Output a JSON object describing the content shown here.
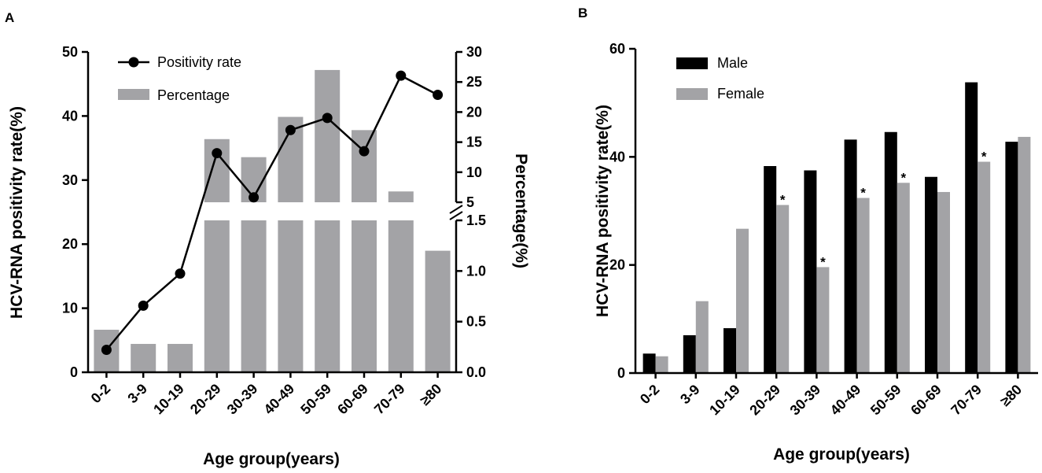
{
  "chart_data": [
    {
      "panel": "A",
      "type": "bar+line",
      "xlabel": "Age group(years)",
      "ylabel_left": "HCV-RNA positivity rate(%)",
      "ylabel_right": "Percentage(%)",
      "categories": [
        "0-2",
        "3-9",
        "10-19",
        "20-29",
        "30-39",
        "40-49",
        "50-59",
        "60-69",
        "70-79",
        "≥80"
      ],
      "left_axis": {
        "range": [
          0,
          50
        ],
        "ticks": [
          "0",
          "10",
          "20",
          "30",
          "40",
          "50"
        ]
      },
      "right_axis": {
        "broken": true,
        "lower_segment": {
          "range": [
            0,
            1.5
          ],
          "ticks": [
            "0.0",
            "0.5",
            "1.0",
            "1.5"
          ]
        },
        "upper_segment": {
          "range": [
            5,
            30
          ],
          "ticks": [
            "5",
            "10",
            "15",
            "20",
            "25",
            "30"
          ]
        }
      },
      "series": [
        {
          "name": "Positivity rate",
          "kind": "line",
          "axis": "left",
          "values": [
            3.5,
            10.4,
            15.4,
            34.2,
            27.3,
            37.8,
            39.7,
            34.5,
            46.3,
            43.3
          ]
        },
        {
          "name": "Percentage",
          "kind": "bar",
          "axis": "right",
          "values": [
            0.42,
            0.28,
            0.28,
            15.5,
            12.5,
            19.2,
            27.0,
            17.0,
            6.8,
            1.2
          ]
        }
      ],
      "legend": [
        "Positivity rate",
        "Percentage"
      ],
      "colors": {
        "line": "#000000",
        "bar": "#a3a3a6"
      }
    },
    {
      "panel": "B",
      "type": "grouped-bar",
      "xlabel": "Age group(years)",
      "ylabel": "HCV-RNA positivity rate(%)",
      "categories": [
        "0-2",
        "3-9",
        "10-19",
        "20-29",
        "30-39",
        "40-49",
        "50-59",
        "60-69",
        "70-79",
        "≥80"
      ],
      "ylim": [
        0,
        60
      ],
      "yticks": [
        "0",
        "20",
        "40",
        "60"
      ],
      "series": [
        {
          "name": "Male",
          "color": "#000000",
          "values": [
            3.6,
            7.0,
            8.3,
            38.3,
            37.5,
            43.2,
            44.6,
            36.3,
            53.8,
            42.8
          ]
        },
        {
          "name": "Female",
          "color": "#a3a3a6",
          "values": [
            3.1,
            13.3,
            26.7,
            31.1,
            19.6,
            32.4,
            35.2,
            33.5,
            39.1,
            43.7
          ]
        }
      ],
      "significance_marker": "*",
      "significant_female_bars": [
        3,
        4,
        5,
        6,
        8
      ],
      "legend": [
        "Male",
        "Female"
      ]
    }
  ]
}
